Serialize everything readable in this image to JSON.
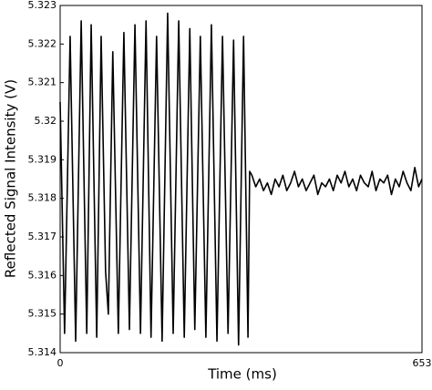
{
  "chart_data": {
    "type": "line",
    "xlabel": "Time (ms)",
    "ylabel": "Reflected Signal Intensity (V)",
    "x": [
      0,
      8,
      18,
      28,
      38,
      48,
      56,
      66,
      74,
      82,
      87,
      95,
      105,
      115,
      125,
      135,
      145,
      155,
      164,
      174,
      184,
      194,
      204,
      214,
      224,
      234,
      243,
      253,
      263,
      273,
      283,
      293,
      303,
      313,
      322,
      331,
      339,
      342,
      346,
      353,
      360,
      367,
      374,
      381,
      388,
      395,
      402,
      409,
      416,
      423,
      430,
      437,
      444,
      451,
      458,
      465,
      472,
      479,
      486,
      493,
      500,
      507,
      514,
      521,
      528,
      535,
      542,
      549,
      556,
      563,
      570,
      577,
      584,
      591,
      598,
      605,
      612,
      619,
      626,
      633,
      640,
      647,
      653
    ],
    "series": [
      {
        "color": "#000000",
        "values": [
          5.3205,
          5.3145,
          5.3222,
          5.3143,
          5.3226,
          5.3145,
          5.3225,
          5.3144,
          5.3222,
          5.3161,
          5.315,
          5.3218,
          5.3145,
          5.3223,
          5.3146,
          5.3225,
          5.3145,
          5.3226,
          5.3144,
          5.3222,
          5.3143,
          5.3228,
          5.3145,
          5.3226,
          5.3144,
          5.3224,
          5.3146,
          5.3222,
          5.3144,
          5.3225,
          5.3143,
          5.3222,
          5.3145,
          5.3221,
          5.3142,
          5.3222,
          5.3144,
          5.3187,
          5.3186,
          5.3183,
          5.3185,
          5.3182,
          5.3184,
          5.3181,
          5.3185,
          5.3183,
          5.3186,
          5.3182,
          5.3184,
          5.3187,
          5.3183,
          5.3185,
          5.3182,
          5.3184,
          5.3186,
          5.3181,
          5.3184,
          5.3183,
          5.3185,
          5.3182,
          5.3186,
          5.3184,
          5.3187,
          5.3183,
          5.3185,
          5.3182,
          5.3186,
          5.3184,
          5.3183,
          5.3187,
          5.3182,
          5.3185,
          5.3184,
          5.3186,
          5.3181,
          5.3185,
          5.3183,
          5.3187,
          5.3184,
          5.3182,
          5.3188,
          5.3183,
          5.3185
        ]
      }
    ],
    "xlim": [
      0,
      653
    ],
    "xticks": [
      0,
      653
    ],
    "ylim": [
      5.314,
      5.323
    ],
    "yticks": [
      5.314,
      5.315,
      5.316,
      5.317,
      5.318,
      5.319,
      5.32,
      5.321,
      5.322,
      5.323
    ]
  }
}
